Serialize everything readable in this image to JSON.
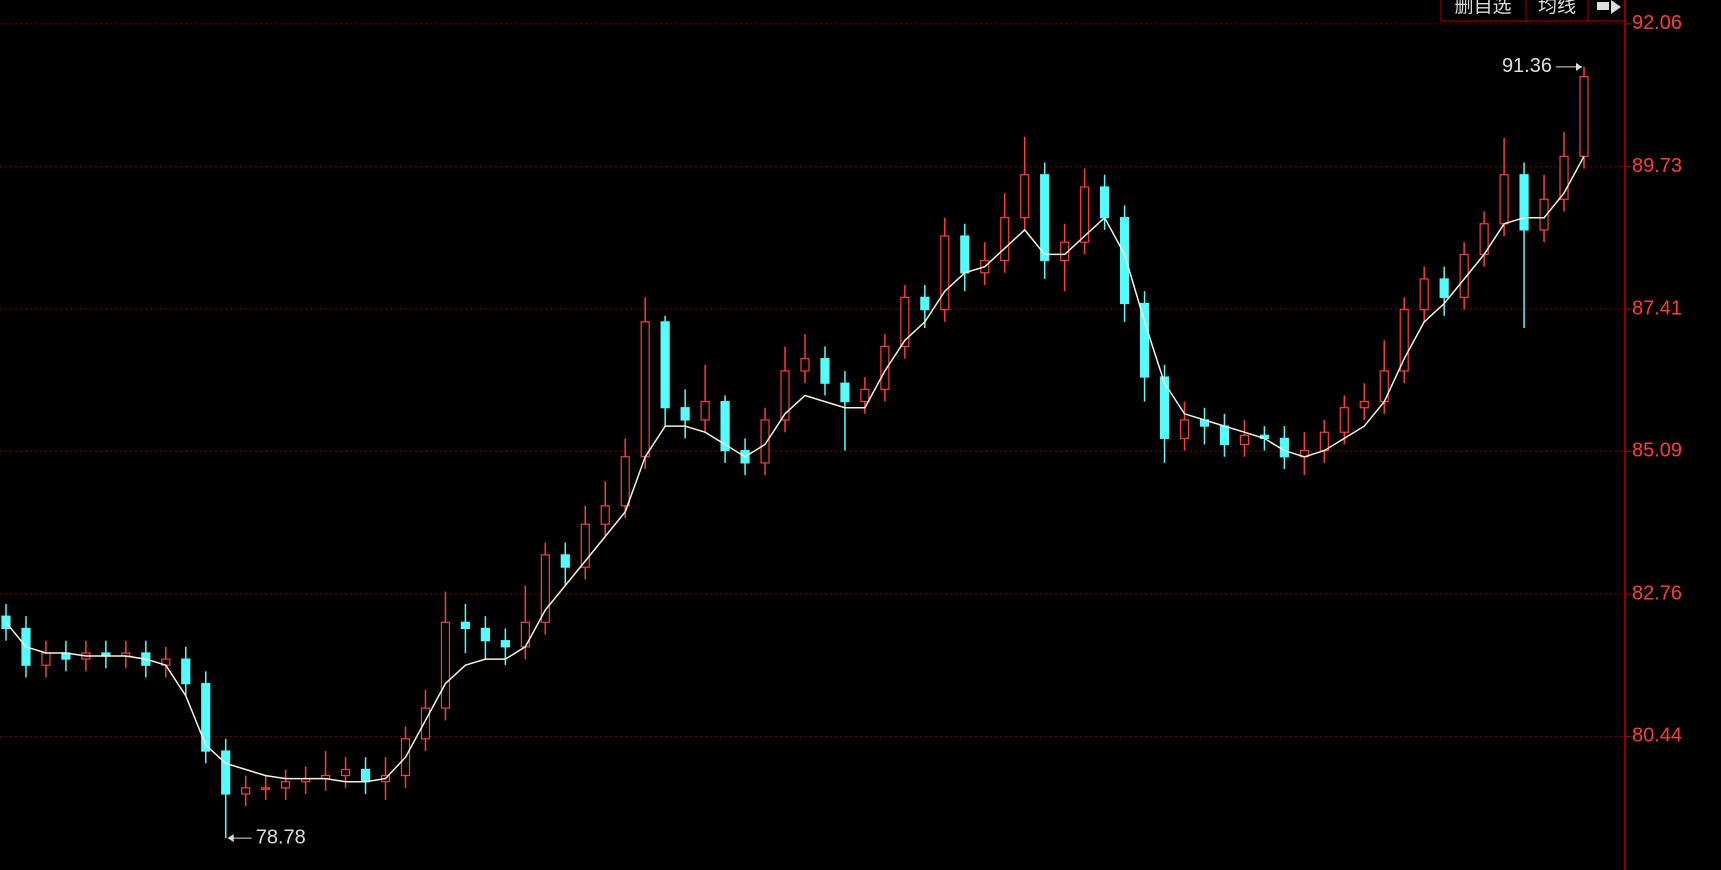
{
  "toolbar": {
    "buttons": [
      "删自选",
      "均线"
    ]
  },
  "chart_data": {
    "type": "candlestick",
    "open": [
      82.4,
      82.2,
      81.6,
      81.8,
      81.7,
      81.8,
      81.75,
      81.8,
      81.6,
      81.7,
      81.3,
      80.2,
      79.5,
      79.6,
      79.6,
      79.7,
      79.75,
      79.8,
      79.9,
      79.7,
      79.8,
      80.4,
      80.9,
      82.3,
      82.2,
      82.0,
      81.9,
      82.3,
      83.4,
      83.2,
      83.9,
      84.2,
      85.0,
      87.2,
      85.8,
      85.6,
      85.9,
      85.1,
      84.9,
      85.6,
      86.4,
      86.6,
      86.2,
      85.9,
      86.1,
      86.8,
      87.6,
      87.4,
      88.6,
      88.0,
      88.2,
      88.9,
      89.6,
      88.2,
      88.5,
      89.4,
      88.9,
      87.5,
      86.3,
      85.3,
      85.6,
      85.5,
      85.2,
      85.35,
      85.3,
      85.0,
      85.1,
      85.4,
      85.8,
      85.9,
      86.4,
      87.4,
      87.9,
      87.6,
      88.3,
      88.8,
      89.6,
      88.7,
      89.2,
      89.9
    ],
    "high": [
      82.6,
      82.4,
      82.0,
      82.0,
      82.0,
      82.0,
      82.0,
      82.0,
      81.9,
      81.9,
      81.5,
      80.4,
      79.8,
      79.8,
      79.9,
      79.95,
      80.2,
      80.1,
      80.1,
      80.1,
      80.6,
      81.2,
      82.8,
      82.6,
      82.4,
      82.2,
      82.9,
      83.6,
      83.6,
      84.2,
      84.6,
      85.3,
      87.6,
      87.3,
      86.1,
      86.5,
      86.0,
      85.3,
      85.8,
      86.8,
      87.0,
      86.8,
      86.4,
      86.3,
      87.0,
      87.8,
      87.8,
      88.9,
      88.8,
      88.5,
      89.3,
      90.22,
      89.8,
      88.8,
      89.7,
      89.6,
      89.1,
      87.7,
      86.5,
      85.9,
      85.8,
      85.7,
      85.6,
      85.5,
      85.5,
      85.4,
      85.6,
      86.0,
      86.2,
      86.9,
      87.6,
      88.1,
      88.1,
      88.5,
      89.0,
      90.2,
      89.8,
      89.6,
      90.3,
      91.36
    ],
    "low": [
      82.0,
      81.4,
      81.4,
      81.5,
      81.5,
      81.55,
      81.55,
      81.4,
      81.4,
      81.1,
      80.0,
      78.78,
      79.3,
      79.4,
      79.4,
      79.5,
      79.55,
      79.6,
      79.5,
      79.4,
      79.6,
      80.2,
      80.7,
      81.8,
      81.7,
      81.6,
      81.7,
      82.1,
      82.9,
      83.0,
      83.7,
      84.0,
      84.8,
      85.5,
      85.3,
      85.4,
      84.9,
      84.7,
      84.7,
      85.4,
      86.2,
      86.0,
      85.1,
      85.7,
      85.9,
      86.6,
      87.1,
      87.2,
      87.7,
      87.8,
      88.0,
      88.7,
      87.9,
      87.7,
      88.3,
      88.7,
      87.2,
      85.9,
      84.9,
      85.1,
      85.2,
      85.0,
      85.0,
      85.1,
      84.8,
      84.7,
      84.9,
      85.2,
      85.6,
      85.7,
      86.2,
      87.2,
      87.3,
      87.4,
      88.1,
      88.6,
      87.1,
      88.5,
      89.0,
      89.7
    ],
    "close": [
      82.2,
      81.6,
      81.8,
      81.7,
      81.8,
      81.75,
      81.8,
      81.6,
      81.7,
      81.3,
      80.2,
      79.5,
      79.6,
      79.6,
      79.7,
      79.75,
      79.8,
      79.9,
      79.7,
      79.8,
      80.4,
      80.9,
      82.3,
      82.2,
      82.0,
      81.9,
      82.3,
      83.4,
      83.2,
      83.9,
      84.2,
      85.0,
      87.2,
      85.8,
      85.6,
      85.9,
      85.1,
      84.9,
      85.6,
      86.4,
      86.6,
      86.2,
      85.9,
      86.1,
      86.8,
      87.6,
      87.4,
      88.6,
      88.0,
      88.2,
      88.9,
      89.6,
      88.2,
      88.5,
      89.4,
      88.9,
      87.5,
      86.3,
      85.3,
      85.6,
      85.5,
      85.2,
      85.35,
      85.3,
      85.0,
      85.1,
      85.4,
      85.8,
      85.9,
      86.4,
      87.4,
      87.9,
      87.6,
      88.3,
      88.8,
      89.6,
      88.7,
      89.2,
      89.9,
      91.2
    ],
    "ma": {
      "color": "#f4f4d8",
      "values": [
        82.3,
        81.9,
        81.8,
        81.8,
        81.75,
        81.75,
        81.75,
        81.7,
        81.6,
        81.1,
        80.3,
        80.0,
        79.9,
        79.8,
        79.75,
        79.75,
        79.75,
        79.7,
        79.7,
        79.75,
        80.1,
        80.7,
        81.3,
        81.6,
        81.7,
        81.7,
        81.9,
        82.5,
        82.9,
        83.3,
        83.7,
        84.1,
        85.0,
        85.5,
        85.5,
        85.4,
        85.2,
        85.0,
        85.2,
        85.7,
        86.0,
        85.9,
        85.8,
        85.8,
        86.4,
        86.9,
        87.2,
        87.7,
        88.0,
        88.1,
        88.4,
        88.7,
        88.3,
        88.3,
        88.6,
        88.9,
        88.3,
        87.2,
        86.2,
        85.7,
        85.6,
        85.5,
        85.4,
        85.3,
        85.1,
        85.0,
        85.1,
        85.3,
        85.5,
        85.9,
        86.6,
        87.2,
        87.5,
        87.9,
        88.3,
        88.8,
        88.9,
        88.9,
        89.3,
        89.9
      ]
    },
    "up_color": "#ff3c3c",
    "down_color": "#54fcfc",
    "high_marker": 91.36,
    "low_marker": 78.78,
    "ylim": [
      78.26,
      92.45
    ],
    "yticks": [
      92.06,
      89.73,
      87.41,
      85.09,
      82.76,
      80.44
    ],
    "grid": true
  }
}
